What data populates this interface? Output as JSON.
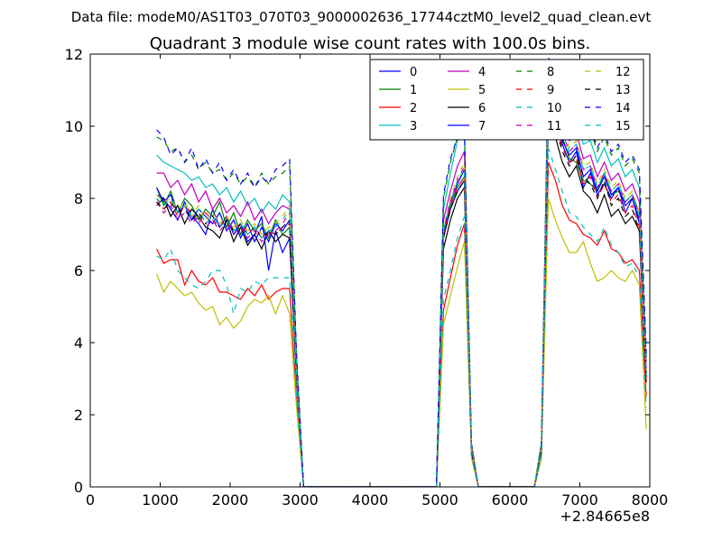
{
  "figure": {
    "suptitle": "Data file: modeM0/AS1T03_070T03_9000002636_17744cztM0_level2_quad_clean.evt",
    "title": "Quadrant 3 module wise count rates with 100.0s bins.",
    "x_offset_label": "+2.84665e8"
  },
  "chart_data": {
    "type": "line",
    "title": "Quadrant 3 module wise count rates with 100.0s bins.",
    "xlabel": "",
    "ylabel": "",
    "xlim": [
      0,
      8000
    ],
    "ylim": [
      0,
      12
    ],
    "x_offset": 284665000,
    "xticks": [
      0,
      1000,
      2000,
      3000,
      4000,
      5000,
      6000,
      7000,
      8000
    ],
    "yticks": [
      0,
      2,
      4,
      6,
      8,
      10,
      12
    ],
    "grid": false,
    "legend": {
      "placement": "top-right",
      "columns": 4
    },
    "x": [
      950,
      1050,
      1150,
      1250,
      1350,
      1450,
      1550,
      1650,
      1750,
      1850,
      1950,
      2050,
      2150,
      2250,
      2350,
      2450,
      2550,
      2650,
      2750,
      2850,
      2950,
      3050,
      4950,
      5050,
      5150,
      5250,
      5350,
      5450,
      5550,
      6350,
      6450,
      6550,
      6650,
      6750,
      6850,
      6950,
      7050,
      7150,
      7250,
      7350,
      7450,
      7550,
      7650,
      7750,
      7850,
      7950
    ],
    "series": [
      {
        "name": "0",
        "color": "#0000ff",
        "dash": "solid",
        "values": [
          8.1,
          8.0,
          7.7,
          7.4,
          7.9,
          7.5,
          7.3,
          7.0,
          7.7,
          7.2,
          7.5,
          7.0,
          7.3,
          6.8,
          7.0,
          7.5,
          6.0,
          7.1,
          6.5,
          6.9,
          3.1,
          0,
          0,
          6.9,
          7.7,
          8.2,
          8.5,
          1.1,
          0,
          0,
          1.0,
          10.8,
          10.2,
          9.5,
          9.0,
          9.3,
          8.3,
          8.7,
          8.1,
          8.4,
          8.0,
          8.3,
          7.6,
          8.0,
          7.3,
          3.1
        ]
      },
      {
        "name": "1",
        "color": "#008000",
        "dash": "solid",
        "values": [
          8.3,
          7.8,
          8.2,
          7.6,
          8.0,
          7.8,
          7.4,
          7.7,
          7.5,
          7.9,
          7.2,
          7.6,
          7.0,
          7.4,
          7.1,
          7.3,
          6.9,
          7.4,
          7.0,
          7.2,
          3.2,
          0,
          0,
          7.0,
          7.8,
          8.3,
          8.6,
          1.1,
          0,
          0,
          1.1,
          10.9,
          10.4,
          9.7,
          9.1,
          9.0,
          8.5,
          8.4,
          8.2,
          8.7,
          8.1,
          8.2,
          7.9,
          8.1,
          7.6,
          3.2
        ]
      },
      {
        "name": "2",
        "color": "#ff0000",
        "dash": "solid",
        "values": [
          6.6,
          6.2,
          6.3,
          6.3,
          5.6,
          6.0,
          5.7,
          5.6,
          5.8,
          5.4,
          5.4,
          5.3,
          5.2,
          5.5,
          5.3,
          5.6,
          5.2,
          5.4,
          5.5,
          5.5,
          2.4,
          0,
          0,
          4.9,
          5.8,
          6.7,
          7.3,
          0.9,
          0,
          0,
          0.8,
          9.0,
          8.5,
          7.8,
          7.4,
          7.3,
          7.0,
          6.9,
          6.7,
          7.1,
          6.6,
          6.5,
          6.2,
          6.3,
          6.0,
          2.5
        ]
      },
      {
        "name": "3",
        "color": "#00bfbf",
        "dash": "solid",
        "values": [
          9.2,
          9.0,
          8.9,
          8.8,
          8.7,
          8.5,
          8.6,
          8.3,
          8.4,
          8.1,
          8.3,
          7.9,
          8.2,
          7.8,
          8.0,
          7.6,
          7.9,
          7.7,
          8.1,
          7.9,
          3.4,
          0,
          0,
          7.7,
          8.7,
          9.6,
          9.8,
          1.2,
          0,
          0,
          1.2,
          11.7,
          11.2,
          10.6,
          10.1,
          10.3,
          9.5,
          9.6,
          9.0,
          9.4,
          8.9,
          9.1,
          8.6,
          8.8,
          8.3,
          3.5
        ]
      },
      {
        "name": "4",
        "color": "#bf00bf",
        "dash": "solid",
        "values": [
          8.7,
          8.7,
          8.3,
          8.5,
          8.1,
          8.4,
          7.9,
          8.2,
          7.7,
          8.0,
          7.6,
          7.8,
          7.5,
          7.9,
          7.4,
          7.7,
          7.3,
          7.6,
          7.8,
          7.7,
          3.3,
          0,
          0,
          7.4,
          8.2,
          8.9,
          9.3,
          1.1,
          0,
          0,
          1.1,
          11.2,
          10.7,
          10.1,
          9.6,
          9.8,
          9.1,
          9.2,
          8.6,
          9.0,
          8.5,
          8.7,
          8.2,
          8.4,
          7.9,
          3.3
        ]
      },
      {
        "name": "5",
        "color": "#bfbf00",
        "dash": "solid",
        "values": [
          5.9,
          5.4,
          5.7,
          5.5,
          5.3,
          5.4,
          5.1,
          4.9,
          5.0,
          4.5,
          4.7,
          4.4,
          4.6,
          5.0,
          5.2,
          5.1,
          5.3,
          4.8,
          5.3,
          4.8,
          2.2,
          0,
          0,
          4.5,
          5.3,
          6.1,
          6.8,
          0.8,
          0,
          0,
          0.8,
          8.0,
          7.4,
          6.9,
          6.5,
          6.5,
          6.8,
          6.2,
          5.7,
          5.8,
          6.0,
          5.8,
          5.7,
          6.0,
          5.6,
          1.6
        ]
      },
      {
        "name": "6",
        "color": "#000000",
        "dash": "solid",
        "values": [
          7.8,
          8.0,
          7.5,
          7.8,
          7.3,
          7.7,
          7.5,
          7.2,
          7.1,
          6.9,
          7.4,
          6.8,
          7.2,
          6.7,
          7.0,
          6.6,
          7.1,
          6.8,
          7.0,
          6.9,
          3.0,
          0,
          0,
          6.6,
          7.4,
          8.0,
          8.3,
          1.0,
          0,
          0,
          1.0,
          10.5,
          9.7,
          9.0,
          8.6,
          8.9,
          8.2,
          8.0,
          7.6,
          8.1,
          7.5,
          7.7,
          7.3,
          7.5,
          7.1,
          2.9
        ]
      },
      {
        "name": "7",
        "color": "#0000ff",
        "dash": "solid",
        "values": [
          8.3,
          7.9,
          8.1,
          7.6,
          7.8,
          7.4,
          7.7,
          7.5,
          7.3,
          7.6,
          7.1,
          7.4,
          6.9,
          7.3,
          6.8,
          7.2,
          6.8,
          7.3,
          7.1,
          7.4,
          3.2,
          0,
          0,
          7.1,
          7.9,
          8.4,
          8.8,
          1.1,
          0,
          0,
          1.1,
          11.0,
          10.3,
          9.6,
          9.2,
          9.4,
          8.6,
          8.8,
          8.2,
          8.6,
          8.1,
          8.3,
          7.8,
          8.0,
          7.4,
          3.0
        ]
      },
      {
        "name": "8",
        "color": "#008000",
        "dash": "dashed",
        "values": [
          9.7,
          9.6,
          9.3,
          9.4,
          9.0,
          9.2,
          8.8,
          9.0,
          8.7,
          8.8,
          8.5,
          8.7,
          8.4,
          8.6,
          8.3,
          8.7,
          8.4,
          8.6,
          8.7,
          8.9,
          3.6,
          0,
          0,
          8.0,
          9.0,
          9.7,
          9.9,
          1.2,
          0,
          0,
          1.2,
          11.8,
          11.4,
          10.9,
          10.4,
          10.5,
          9.8,
          9.9,
          9.3,
          9.7,
          9.2,
          9.4,
          8.9,
          9.1,
          8.7,
          3.6
        ]
      },
      {
        "name": "9",
        "color": "#ff0000",
        "dash": "dashed",
        "values": [
          8.0,
          7.7,
          7.9,
          7.5,
          7.8,
          7.6,
          7.3,
          7.6,
          7.4,
          7.2,
          7.5,
          7.1,
          7.3,
          7.0,
          7.2,
          6.9,
          7.1,
          7.0,
          7.2,
          7.3,
          3.1,
          0,
          0,
          7.0,
          7.8,
          8.3,
          8.6,
          1.0,
          0,
          0,
          1.0,
          10.8,
          10.1,
          9.4,
          9.0,
          9.1,
          8.4,
          8.6,
          8.0,
          8.4,
          7.9,
          8.1,
          7.6,
          7.8,
          7.2,
          2.9
        ]
      },
      {
        "name": "10",
        "color": "#00bfbf",
        "dash": "dashed",
        "values": [
          6.4,
          6.3,
          6.6,
          6.0,
          5.8,
          5.6,
          5.5,
          5.7,
          6.0,
          6.0,
          5.6,
          4.8,
          5.5,
          5.4,
          5.7,
          5.6,
          5.8,
          5.8,
          5.8,
          5.8,
          2.5,
          0,
          0,
          5.2,
          6.0,
          6.9,
          7.5,
          0.9,
          0,
          0,
          0.9,
          9.4,
          8.8,
          8.2,
          7.6,
          7.5,
          7.2,
          7.0,
          6.8,
          7.2,
          6.7,
          6.5,
          6.1,
          6.2,
          5.8,
          2.2
        ]
      },
      {
        "name": "11",
        "color": "#bf00bf",
        "dash": "dashed",
        "values": [
          7.9,
          7.6,
          7.8,
          7.4,
          7.6,
          7.3,
          7.5,
          7.2,
          7.4,
          7.1,
          7.3,
          7.0,
          7.2,
          6.9,
          7.1,
          6.8,
          7.0,
          7.1,
          7.3,
          7.6,
          3.2,
          0,
          0,
          7.1,
          7.9,
          8.5,
          8.9,
          1.1,
          0,
          0,
          1.1,
          11.1,
          10.5,
          9.8,
          9.3,
          9.5,
          8.8,
          8.9,
          8.3,
          8.7,
          8.2,
          8.4,
          7.9,
          8.1,
          7.5,
          3.1
        ]
      },
      {
        "name": "12",
        "color": "#bfbf00",
        "dash": "dashed",
        "values": [
          8.1,
          7.9,
          8.0,
          7.7,
          7.9,
          7.5,
          7.8,
          7.4,
          7.6,
          7.3,
          7.5,
          7.2,
          7.4,
          7.1,
          7.3,
          7.0,
          7.2,
          7.3,
          7.5,
          7.8,
          3.3,
          0,
          0,
          7.2,
          8.0,
          8.6,
          9.0,
          1.1,
          0,
          0,
          1.1,
          11.3,
          10.6,
          9.9,
          9.4,
          9.6,
          8.9,
          9.0,
          8.4,
          8.8,
          8.3,
          8.5,
          8.0,
          8.2,
          7.6,
          3.2
        ]
      },
      {
        "name": "13",
        "color": "#000000",
        "dash": "dashed",
        "values": [
          7.9,
          7.7,
          7.9,
          7.6,
          7.7,
          7.4,
          7.6,
          7.3,
          7.5,
          7.2,
          7.4,
          7.1,
          7.3,
          7.0,
          7.2,
          6.9,
          7.1,
          7.0,
          7.2,
          7.4,
          3.1,
          0,
          0,
          6.9,
          7.7,
          8.2,
          8.5,
          1.0,
          0,
          0,
          1.0,
          10.7,
          10.0,
          9.3,
          8.9,
          9.2,
          8.6,
          8.4,
          8.0,
          8.5,
          7.8,
          8.0,
          7.5,
          7.7,
          7.1,
          3.0
        ]
      },
      {
        "name": "14",
        "color": "#0000ff",
        "dash": "dashed",
        "values": [
          9.9,
          9.7,
          9.2,
          9.4,
          9.0,
          9.4,
          8.8,
          9.1,
          8.7,
          9.0,
          8.5,
          8.8,
          8.4,
          8.7,
          8.3,
          8.6,
          8.4,
          8.8,
          8.9,
          9.1,
          3.7,
          0,
          0,
          8.1,
          9.1,
          9.7,
          9.9,
          1.2,
          0,
          0,
          1.2,
          11.9,
          11.5,
          11.0,
          10.5,
          10.6,
          9.9,
          10.0,
          9.4,
          9.8,
          9.3,
          9.5,
          9.0,
          9.2,
          8.8,
          3.7
        ]
      },
      {
        "name": "15",
        "color": "#00bfbf",
        "dash": "dashed",
        "values": [
          8.0,
          7.8,
          8.0,
          7.6,
          7.8,
          7.5,
          7.7,
          7.3,
          7.5,
          7.2,
          7.4,
          7.1,
          7.3,
          7.0,
          7.2,
          6.9,
          7.1,
          7.2,
          7.4,
          7.7,
          3.2,
          0,
          0,
          7.1,
          7.9,
          8.5,
          8.8,
          1.1,
          0,
          0,
          1.1,
          11.2,
          10.5,
          9.8,
          9.3,
          9.5,
          8.8,
          8.9,
          8.3,
          8.7,
          8.2,
          8.4,
          7.9,
          8.1,
          7.5,
          3.1
        ]
      }
    ]
  }
}
